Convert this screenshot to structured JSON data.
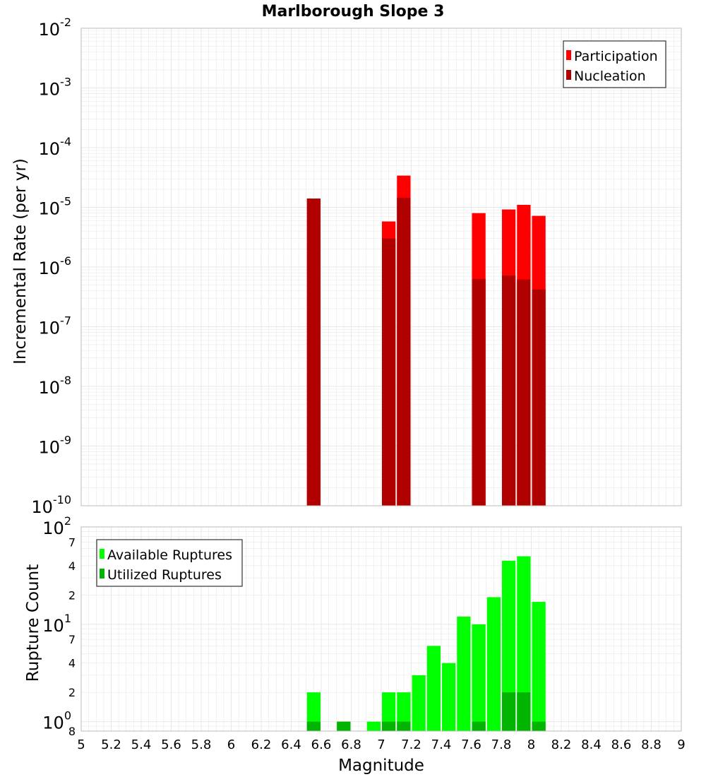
{
  "chart_data": {
    "title": "Marlborough Slope 3",
    "xlabel": "Magnitude",
    "xlim": [
      5,
      9
    ],
    "x_ticks": [
      "5",
      "5.2",
      "5.4",
      "5.6",
      "5.8",
      "6",
      "6.2",
      "6.4",
      "6.6",
      "6.8",
      "7",
      "7.2",
      "7.4",
      "7.6",
      "7.8",
      "8",
      "8.2",
      "8.4",
      "8.6",
      "8.8",
      "9"
    ],
    "bin_width": 0.1,
    "colors": {
      "participation": "#ff0000",
      "nucleation": "#b00000",
      "available": "#00ff00",
      "utilized": "#00b400",
      "grid": "#e8e8e8",
      "border": "#bbbbbb"
    },
    "panels": [
      {
        "type": "bar",
        "ylabel": "Incremental Rate (per yr)",
        "yscale": "log",
        "ylim": [
          1e-10,
          0.01
        ],
        "y_ticks": [
          {
            "base": "10",
            "exp": "-10"
          },
          {
            "base": "10",
            "exp": "-9"
          },
          {
            "base": "10",
            "exp": "-8"
          },
          {
            "base": "10",
            "exp": "-7"
          },
          {
            "base": "10",
            "exp": "-6"
          },
          {
            "base": "10",
            "exp": "-5"
          },
          {
            "base": "10",
            "exp": "-4"
          },
          {
            "base": "10",
            "exp": "-3"
          },
          {
            "base": "10",
            "exp": "-2"
          }
        ],
        "legend": {
          "position": "top-right",
          "entries": [
            {
              "label": "Participation",
              "color": "#ff0000"
            },
            {
              "label": "Nucleation",
              "color": "#b00000"
            }
          ]
        },
        "series": [
          {
            "name": "Participation",
            "x": [
              6.55,
              7.05,
              7.15,
              7.65,
              7.85,
              7.95,
              8.05
            ],
            "values": [
              1.4e-05,
              5.8e-06,
              3.4e-05,
              8e-06,
              9.2e-06,
              1.1e-05,
              7.2e-06
            ]
          },
          {
            "name": "Nucleation",
            "x": [
              6.55,
              7.05,
              7.15,
              7.65,
              7.85,
              7.95,
              8.05
            ],
            "values": [
              1.4e-05,
              3e-06,
              1.45e-05,
              6.3e-07,
              7.2e-07,
              6.2e-07,
              4.2e-07
            ]
          }
        ]
      },
      {
        "type": "bar",
        "ylabel": "Rupture Count",
        "yscale": "log",
        "ylim": [
          0.8,
          100
        ],
        "y_ticks": [
          {
            "base": "10",
            "exp": "0",
            "value": 1
          },
          {
            "base": "10",
            "exp": "1",
            "value": 10
          },
          {
            "base": "10",
            "exp": "2",
            "value": 100
          }
        ],
        "y_minor_labels": [
          {
            "label": "8",
            "value": 0.8
          },
          {
            "label": "2",
            "value": 2
          },
          {
            "label": "4",
            "value": 4
          },
          {
            "label": "7",
            "value": 7
          },
          {
            "label": "2",
            "value": 20
          },
          {
            "label": "4",
            "value": 40
          },
          {
            "label": "7",
            "value": 70
          }
        ],
        "legend": {
          "position": "top-left",
          "entries": [
            {
              "label": "Available Ruptures",
              "color": "#00ff00"
            },
            {
              "label": "Utilized Ruptures",
              "color": "#00b400"
            }
          ]
        },
        "series": [
          {
            "name": "Available Ruptures",
            "x": [
              6.55,
              6.75,
              6.95,
              7.05,
              7.15,
              7.25,
              7.35,
              7.45,
              7.55,
              7.65,
              7.75,
              7.85,
              7.95,
              8.05
            ],
            "values": [
              2,
              1,
              1,
              2,
              2,
              3,
              6,
              4,
              12,
              10,
              19,
              45,
              50,
              17
            ]
          },
          {
            "name": "Utilized Ruptures",
            "x": [
              6.55,
              6.75,
              7.05,
              7.15,
              7.65,
              7.85,
              7.95,
              8.05
            ],
            "values": [
              1,
              1,
              1,
              1,
              1,
              2,
              2,
              1
            ]
          }
        ]
      }
    ]
  }
}
